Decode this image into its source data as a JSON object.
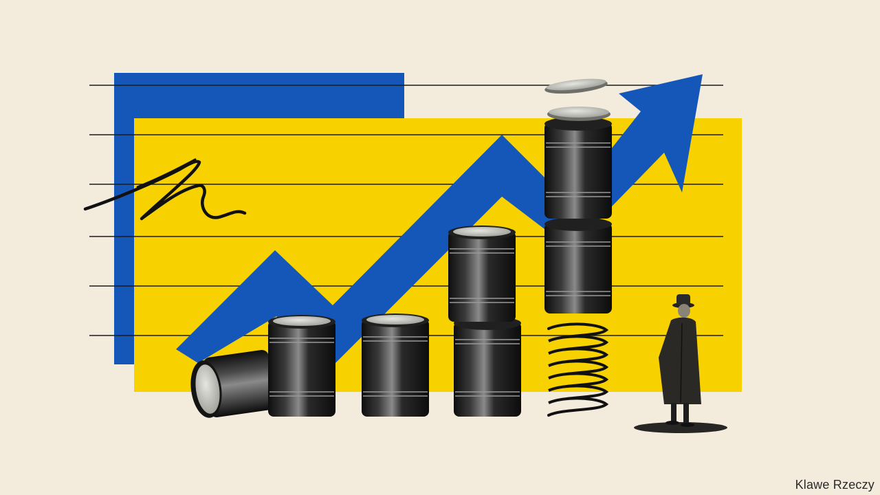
{
  "credit": "Klawe Rzeczy",
  "palette": {
    "background": "#f3ecdd",
    "blue": "#1457b8",
    "yellow": "#f7d200",
    "barrel": "#1c1c1c",
    "lid": "#cfcfc8",
    "ink": "#111111"
  },
  "illustration": {
    "gridline_count": 6,
    "barrel_count": 7,
    "elements": [
      "blue-panel-icon",
      "yellow-panel-icon",
      "rising-arrow-icon",
      "oil-barrel-icon",
      "coin-icon",
      "spring-icon",
      "scribble-icon",
      "man-in-coat-icon"
    ]
  }
}
